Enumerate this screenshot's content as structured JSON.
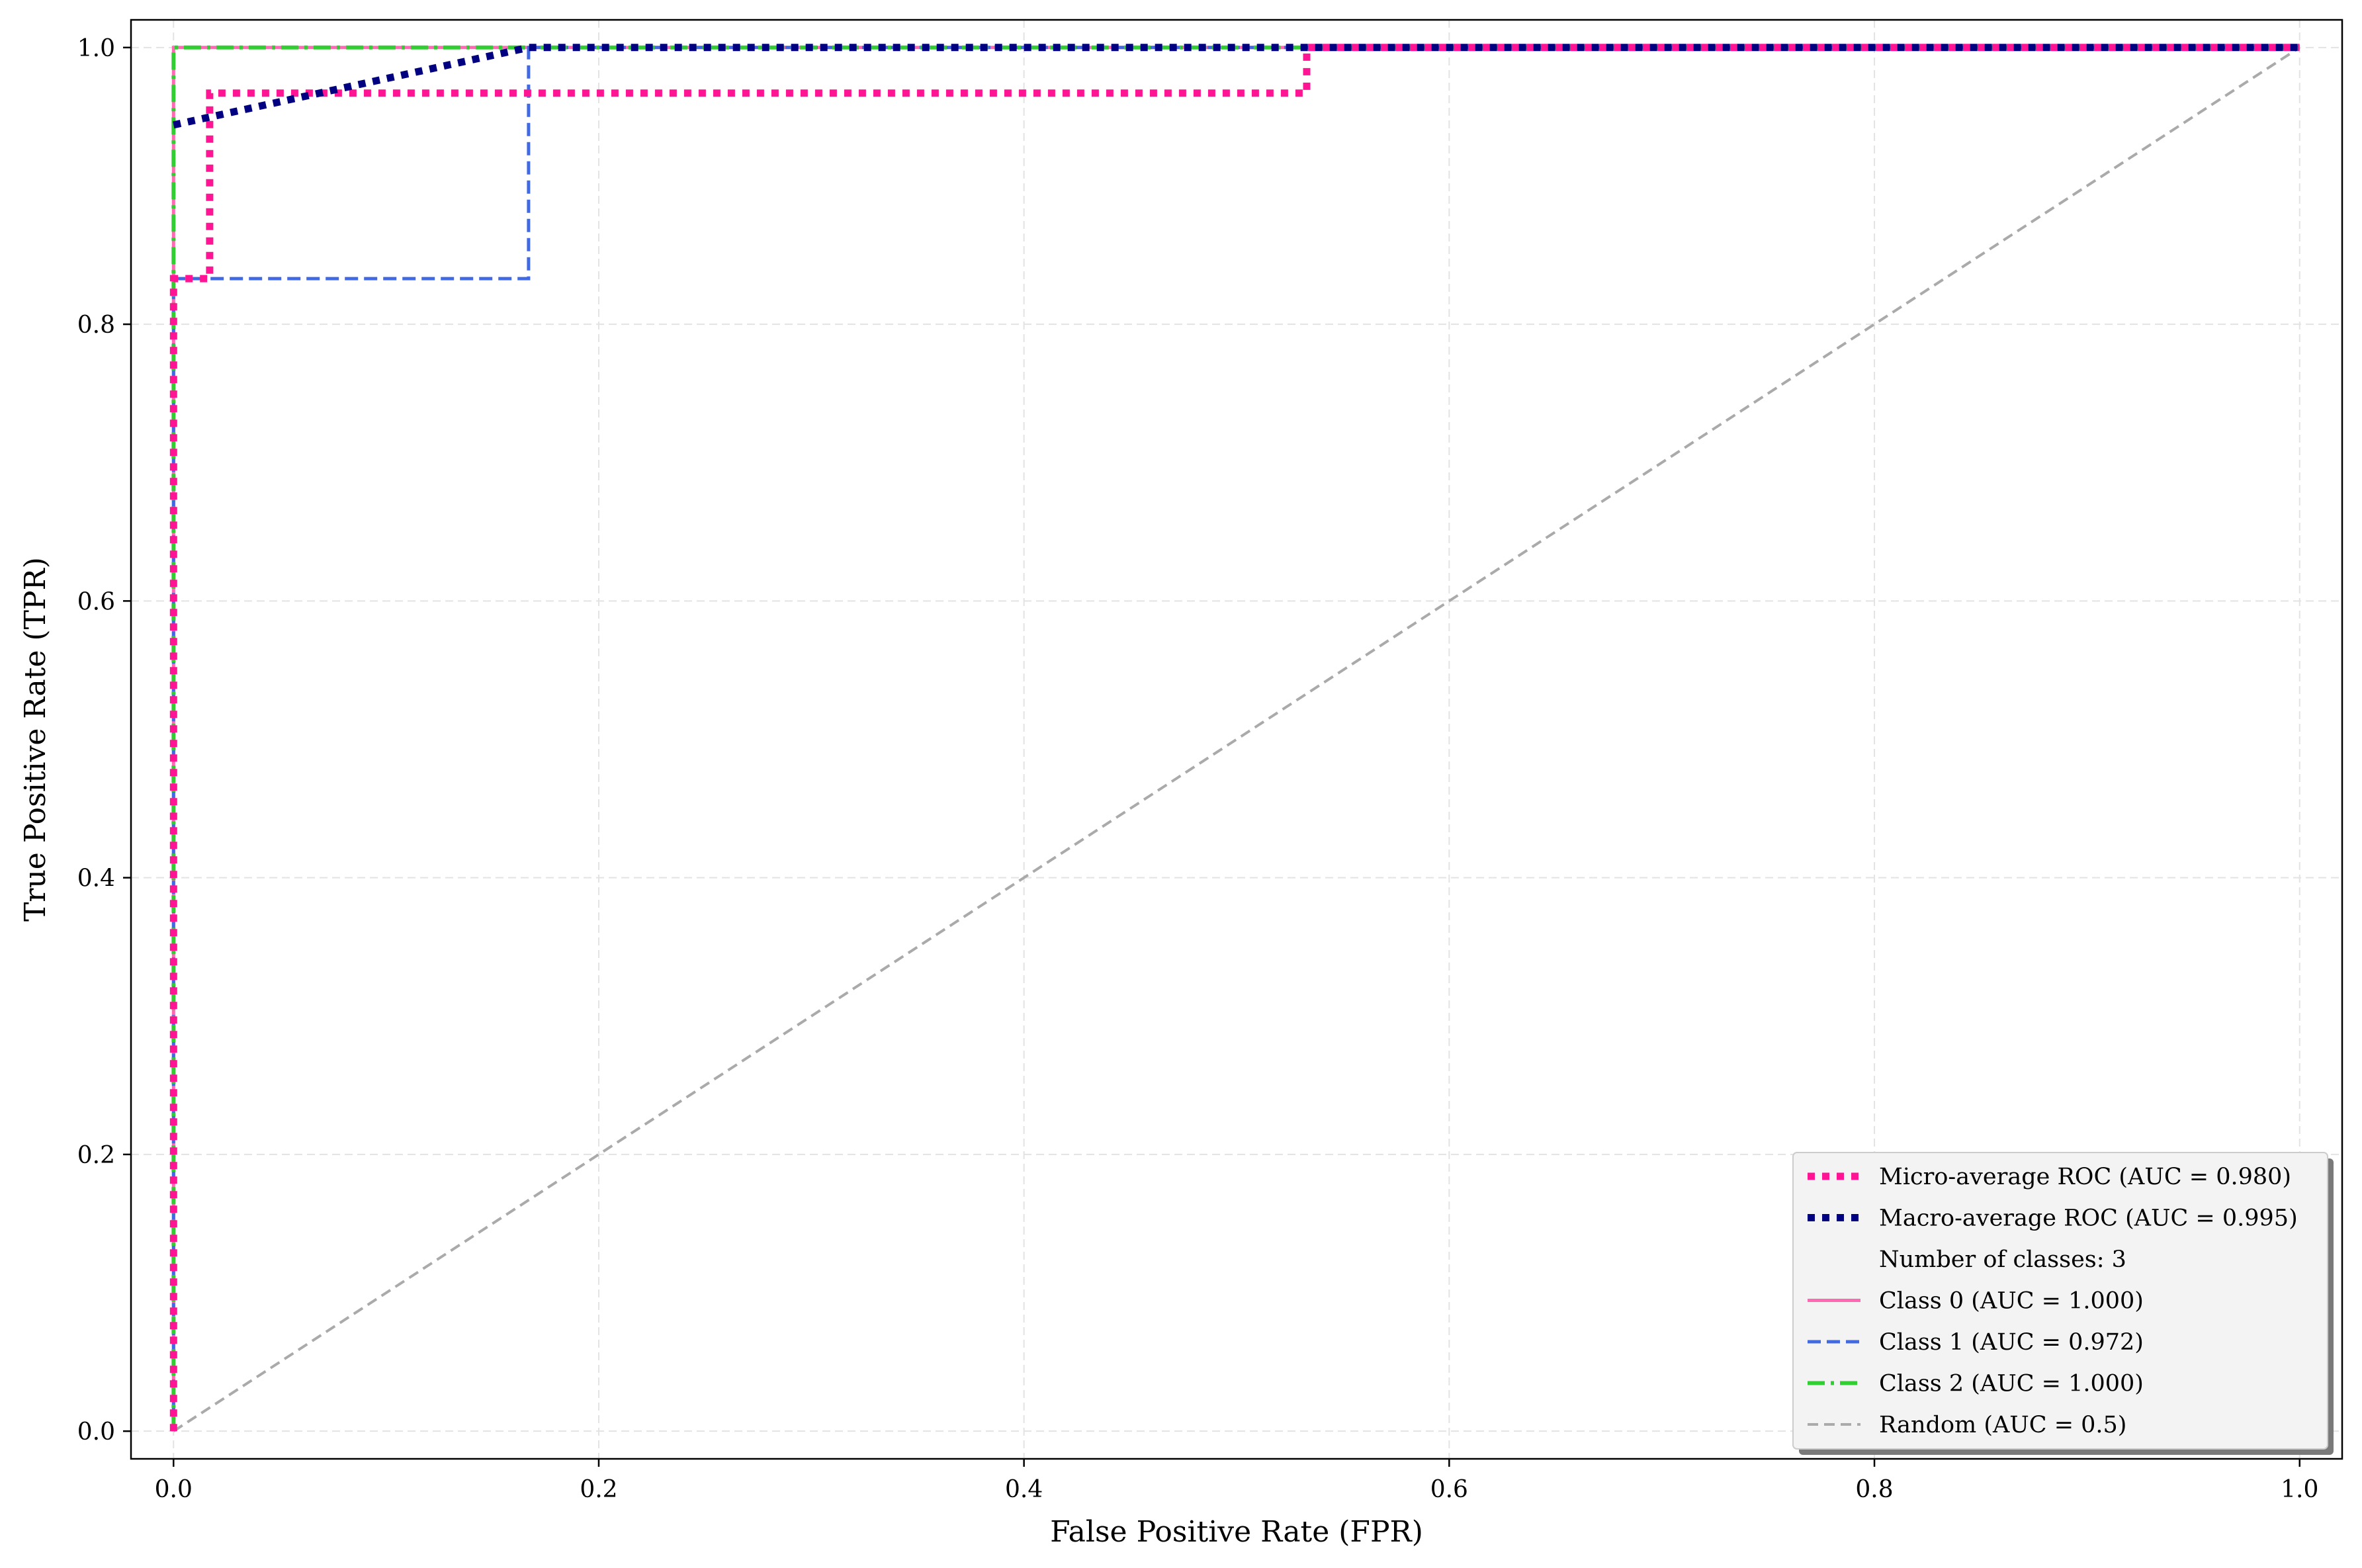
{
  "chart_data": {
    "type": "line",
    "title": "",
    "xlabel": "False Positive Rate (FPR)",
    "ylabel": "True Positive Rate (TPR)",
    "xlim": [
      -0.02,
      1.02
    ],
    "ylim": [
      -0.02,
      1.02
    ],
    "xticks": [
      0.0,
      0.2,
      0.4,
      0.6,
      0.8,
      1.0
    ],
    "yticks": [
      0.0,
      0.2,
      0.4,
      0.6,
      0.8,
      1.0
    ],
    "xtick_labels": [
      "0.0",
      "0.2",
      "0.4",
      "0.6",
      "0.8",
      "1.0"
    ],
    "ytick_labels": [
      "0.0",
      "0.2",
      "0.4",
      "0.6",
      "0.8",
      "1.0"
    ],
    "grid": true,
    "legend_position": "lower-right",
    "series": [
      {
        "name": "Class 0 (AUC = 1.000)",
        "color": "#ff69b4",
        "style": "solid",
        "x": [
          0,
          0,
          1
        ],
        "y": [
          0,
          1,
          1
        ]
      },
      {
        "name": "Class 1 (AUC = 0.972)",
        "color": "#4169e1",
        "style": "dashed",
        "x": [
          0,
          0,
          0.167,
          0.167,
          1
        ],
        "y": [
          0,
          0.833,
          0.833,
          1,
          1
        ]
      },
      {
        "name": "Class 2 (AUC = 1.000)",
        "color": "#32cd32",
        "style": "dashdot",
        "x": [
          0,
          0,
          1
        ],
        "y": [
          0,
          1,
          1
        ]
      },
      {
        "name": "Random (AUC = 0.5)",
        "color": "#aaaaaa",
        "style": "dashed",
        "x": [
          0,
          1
        ],
        "y": [
          0,
          1
        ]
      },
      {
        "name": "Micro-average ROC (AUC = 0.980)",
        "color": "#ff1493",
        "style": "dotted",
        "x": [
          0,
          0,
          0.017,
          0.017,
          0.533,
          0.533,
          1
        ],
        "y": [
          0,
          0.833,
          0.833,
          0.967,
          0.967,
          1,
          1
        ]
      },
      {
        "name": "Macro-average ROC (AUC = 0.995)",
        "color": "#000080",
        "style": "dotted",
        "x": [
          0,
          0.167,
          1
        ],
        "y": [
          0.944,
          1,
          1
        ]
      }
    ],
    "legend": {
      "entries": [
        {
          "label": "Micro-average ROC (AUC = 0.980)",
          "color": "#ff1493",
          "style": "dotted"
        },
        {
          "label": "Macro-average ROC (AUC = 0.995)",
          "color": "#000080",
          "style": "dotted"
        },
        {
          "label": "Number of classes: 3",
          "color": "",
          "style": "none"
        },
        {
          "label": "Class 0 (AUC = 1.000)",
          "color": "#ff69b4",
          "style": "solid"
        },
        {
          "label": "Class 1 (AUC = 0.972)",
          "color": "#4169e1",
          "style": "dashed"
        },
        {
          "label": "Class 2 (AUC = 1.000)",
          "color": "#32cd32",
          "style": "dashdot"
        },
        {
          "label": "Random (AUC = 0.5)",
          "color": "#aaaaaa",
          "style": "dashed"
        }
      ]
    }
  }
}
